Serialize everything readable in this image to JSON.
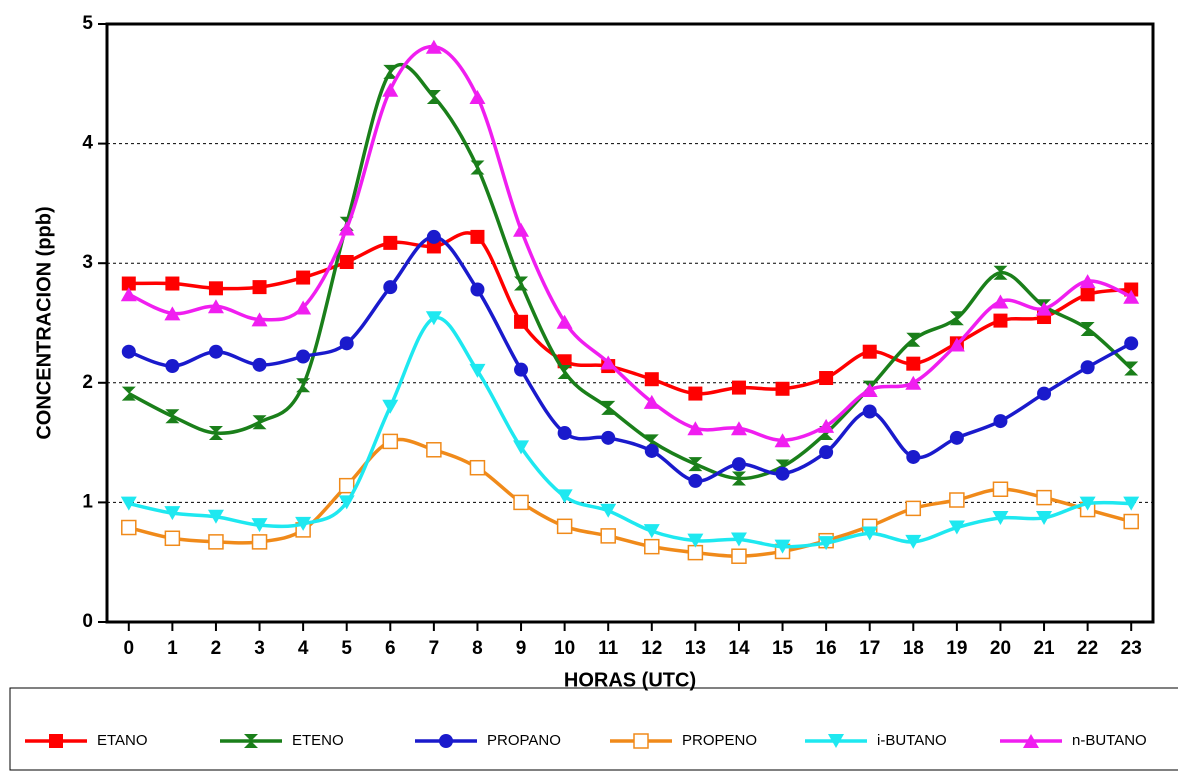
{
  "chart_data": {
    "type": "line",
    "x_label": "HORAS (UTC)",
    "y_label": "CONCENTRACION (ppb)",
    "x": [
      0,
      1,
      2,
      3,
      4,
      5,
      6,
      7,
      8,
      9,
      10,
      11,
      12,
      13,
      14,
      15,
      16,
      17,
      18,
      19,
      20,
      21,
      22,
      23
    ],
    "xlim": [
      -0.5,
      23.5
    ],
    "xticks": [
      0,
      1,
      2,
      3,
      4,
      5,
      6,
      7,
      8,
      9,
      10,
      11,
      12,
      13,
      14,
      15,
      16,
      17,
      18,
      19,
      20,
      21,
      22,
      23
    ],
    "ylim": [
      0,
      5
    ],
    "yticks": [
      0,
      1,
      2,
      3,
      4,
      5
    ],
    "grid": true,
    "series": [
      {
        "name": "ETANO",
        "color": "#ff0000",
        "marker": "square",
        "values": [
          2.83,
          2.83,
          2.79,
          2.8,
          2.88,
          3.01,
          3.17,
          3.14,
          3.22,
          2.51,
          2.18,
          2.14,
          2.03,
          1.91,
          1.96,
          1.95,
          2.04,
          2.26,
          2.16,
          2.33,
          2.52,
          2.55,
          2.74,
          2.78
        ]
      },
      {
        "name": "ETENO",
        "color": "#1a7f1a",
        "marker": "bowtie",
        "values": [
          1.91,
          1.72,
          1.58,
          1.67,
          1.98,
          3.33,
          4.6,
          4.39,
          3.8,
          2.83,
          2.09,
          1.79,
          1.51,
          1.32,
          1.2,
          1.3,
          1.58,
          1.96,
          2.36,
          2.54,
          2.92,
          2.64,
          2.45,
          2.12
        ]
      },
      {
        "name": "PROPANO",
        "color": "#1a1acc",
        "marker": "circle",
        "values": [
          2.26,
          2.14,
          2.26,
          2.15,
          2.22,
          2.33,
          2.8,
          3.22,
          2.78,
          2.11,
          1.58,
          1.54,
          1.43,
          1.18,
          1.32,
          1.24,
          1.42,
          1.76,
          1.38,
          1.54,
          1.68,
          1.91,
          2.13,
          2.33
        ]
      },
      {
        "name": "PROPENO",
        "color": "#f08a1a",
        "marker": "open-square",
        "values": [
          0.79,
          0.7,
          0.67,
          0.67,
          0.77,
          1.14,
          1.51,
          1.44,
          1.29,
          1.0,
          0.8,
          0.72,
          0.63,
          0.58,
          0.55,
          0.59,
          0.68,
          0.8,
          0.95,
          1.02,
          1.11,
          1.04,
          0.94,
          0.84
        ]
      },
      {
        "name": "i-BUTANO",
        "color": "#1ee8f0",
        "marker": "triangle-down",
        "values": [
          0.99,
          0.91,
          0.88,
          0.81,
          0.82,
          1.0,
          1.8,
          2.54,
          2.1,
          1.46,
          1.05,
          0.93,
          0.76,
          0.68,
          0.69,
          0.63,
          0.66,
          0.74,
          0.67,
          0.79,
          0.87,
          0.87,
          0.99,
          0.99
        ]
      },
      {
        "name": "n-BUTANO",
        "color": "#f01ef0",
        "marker": "triangle-up",
        "values": [
          2.74,
          2.58,
          2.64,
          2.53,
          2.63,
          3.29,
          4.45,
          4.81,
          4.39,
          3.28,
          2.51,
          2.17,
          1.84,
          1.62,
          1.62,
          1.52,
          1.64,
          1.94,
          2.0,
          2.32,
          2.68,
          2.62,
          2.85,
          2.72
        ]
      }
    ]
  }
}
